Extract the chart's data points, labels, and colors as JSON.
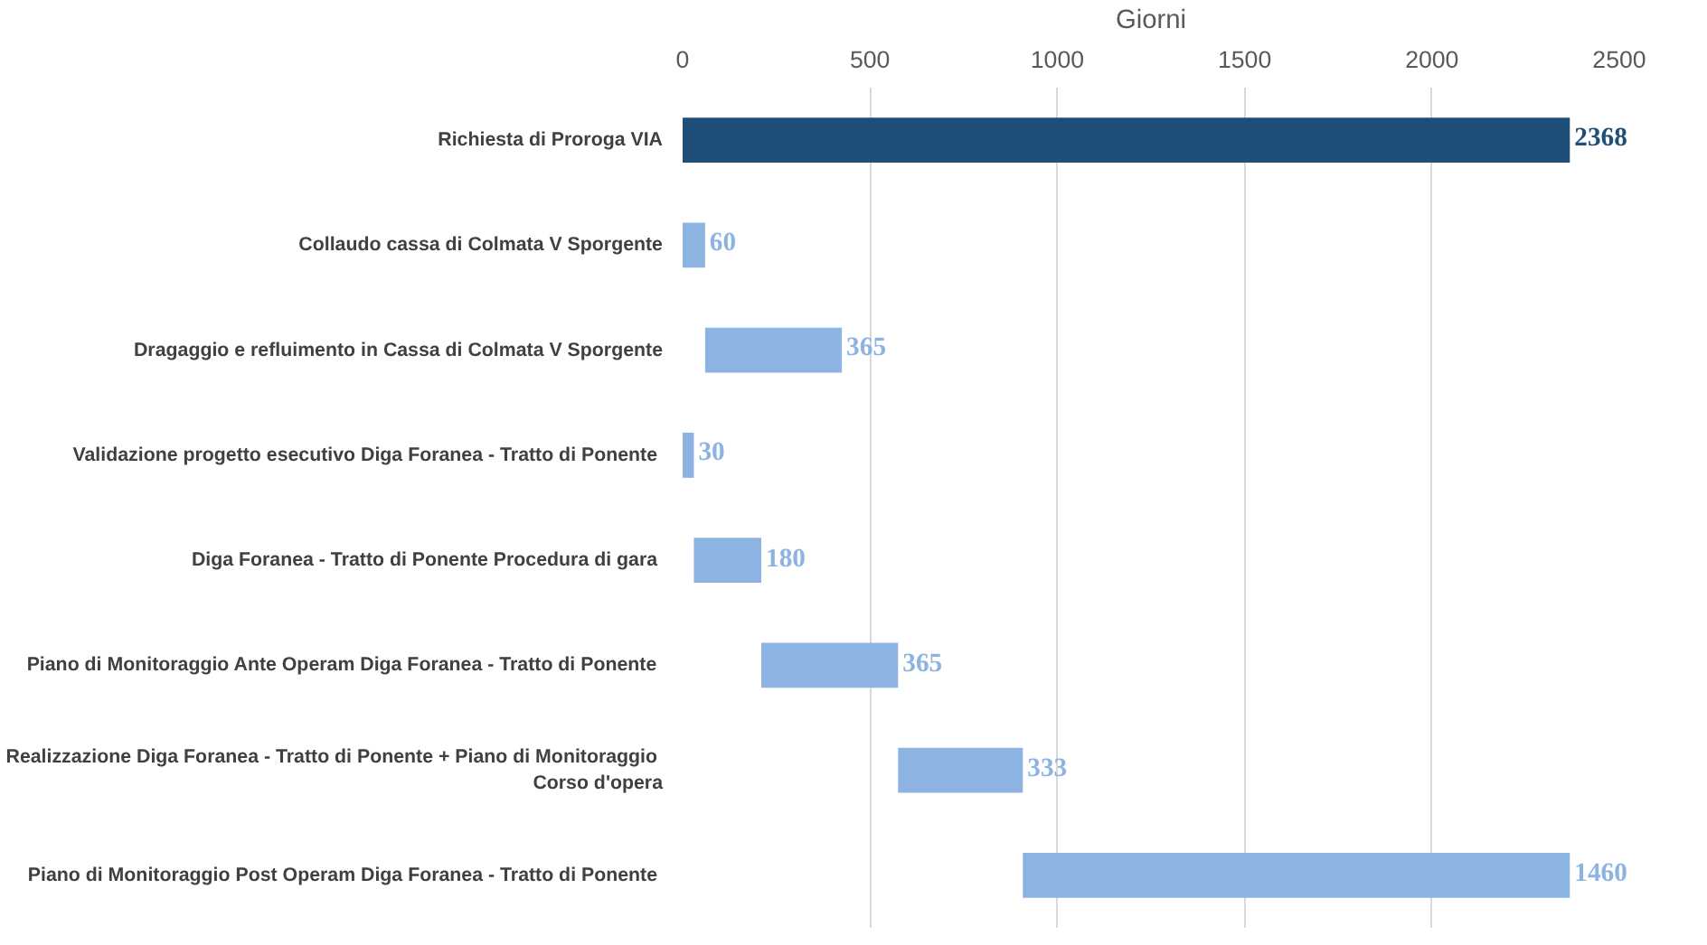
{
  "chart_data": {
    "type": "bar",
    "orientation": "horizontal",
    "xlabel": "Giorni",
    "categories": [
      "Richiesta di Proroga VIA",
      "Collaudo cassa di Colmata V Sporgente",
      "Dragaggio e refluimento in Cassa di Colmata V Sporgente",
      "Validazione progetto esecutivo Diga Foranea -  Tratto di Ponente",
      "Diga Foranea -  Tratto di Ponente Procedura di gara",
      "Piano di Monitoraggio Ante Operam Diga Foranea -  Tratto di Ponente",
      "Realizzazione Diga Foranea -  Tratto di Ponente + Piano di Monitoraggio Corso d'opera",
      "Piano di Monitoraggio Post Operam Diga Foranea -  Tratto di Ponente"
    ],
    "base": [
      0,
      0,
      60,
      0,
      30,
      210,
      575,
      908
    ],
    "values": [
      2368,
      60,
      365,
      30,
      180,
      365,
      333,
      1460
    ],
    "colors": [
      "#1f4e79",
      "#8db3e2",
      "#8db3e2",
      "#8db3e2",
      "#8db3e2",
      "#8db3e2",
      "#8db3e2",
      "#8db3e2"
    ],
    "data_labels": true,
    "xlim": [
      0,
      2500
    ],
    "xticks": [
      0,
      500,
      1000,
      1500,
      2000,
      2500
    ],
    "grid": "x"
  }
}
